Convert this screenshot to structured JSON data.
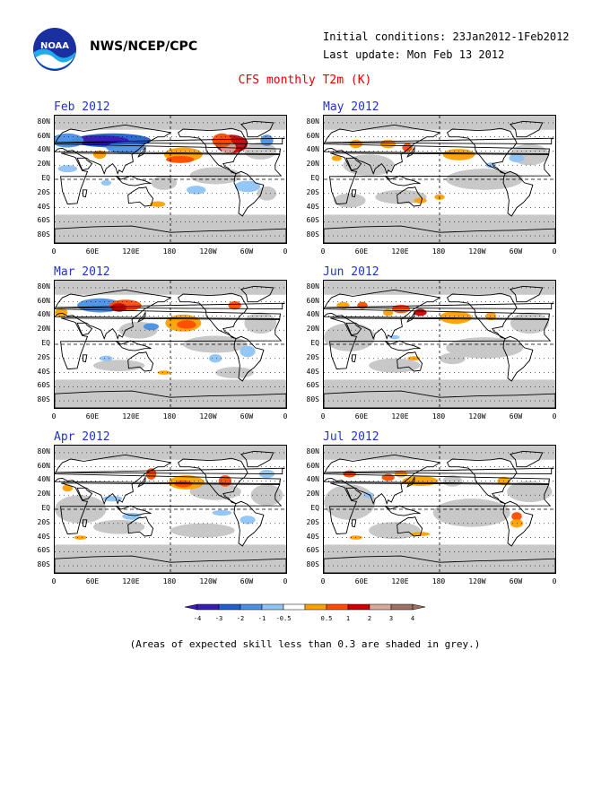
{
  "header": {
    "org": "NWS/NCEP/CPC",
    "initial_conditions": "Initial conditions: 23Jan2012-1Feb2012",
    "last_update": "Last update: Mon Feb 13 2012",
    "title": "CFS monthly T2m (K)"
  },
  "logo": {
    "text": "NOAA",
    "name": "noaa-logo"
  },
  "panels": [
    {
      "title": "Feb 2012"
    },
    {
      "title": "Mar 2012"
    },
    {
      "title": "Apr 2012"
    },
    {
      "title": "May 2012"
    },
    {
      "title": "Jun 2012"
    },
    {
      "title": "Jul 2012"
    }
  ],
  "lat_labels": [
    "80N",
    "60N",
    "40N",
    "20N",
    "EQ",
    "20S",
    "40S",
    "60S",
    "80S"
  ],
  "lon_labels": [
    "0",
    "60E",
    "120E",
    "180",
    "120W",
    "60W",
    "0"
  ],
  "colorbar": {
    "labels": [
      "-4",
      "-3",
      "-2",
      "-1",
      "-0.5",
      "0.5",
      "1",
      "2",
      "3",
      "4"
    ],
    "colors": [
      "#3a1cb8",
      "#2060d0",
      "#4a90e6",
      "#8ec4f4",
      "#ffffff",
      "#ffa000",
      "#ff4c00",
      "#cc0000",
      "#d9a898",
      "#a07060"
    ]
  },
  "footnote": "(Areas of expected skill less than 0.3 are shaded in grey.)",
  "colors": {
    "title": "#e00000",
    "panel_title": "#2233cc",
    "skill_grey": "#c8c8c8"
  }
}
